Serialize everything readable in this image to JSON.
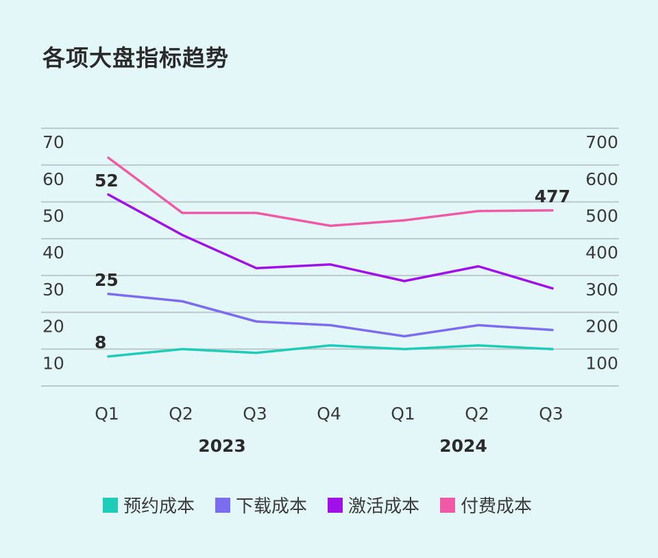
{
  "chart_data": {
    "type": "line",
    "title": "各项大盘指标趋势",
    "categories": [
      "Q1",
      "Q2",
      "Q3",
      "Q4",
      "Q1",
      "Q2",
      "Q3"
    ],
    "year_groups": [
      {
        "label": "2023",
        "start": 0,
        "end": 3
      },
      {
        "label": "2024",
        "start": 4,
        "end": 6
      }
    ],
    "y_left": {
      "min": 0,
      "max": 70,
      "ticks": [
        10,
        20,
        30,
        40,
        50,
        60,
        70
      ]
    },
    "y_right": {
      "min": 0,
      "max": 700,
      "ticks": [
        100,
        200,
        300,
        400,
        500,
        600,
        700
      ]
    },
    "grid": true,
    "legend_position": "bottom",
    "series": [
      {
        "name": "预约成本",
        "color": "#1fcbb9",
        "axis": "left",
        "values": [
          8,
          10,
          9,
          11,
          10,
          11,
          10
        ],
        "labels": [
          {
            "index": 0,
            "text": "8"
          }
        ]
      },
      {
        "name": "下载成本",
        "color": "#7b6cf0",
        "axis": "left",
        "values": [
          25,
          23,
          17.5,
          16.5,
          13.5,
          16.5,
          15.2
        ],
        "labels": [
          {
            "index": 0,
            "text": "25"
          }
        ]
      },
      {
        "name": "激活成本",
        "color": "#a010e8",
        "axis": "left",
        "values": [
          52,
          41,
          32,
          33,
          28.5,
          32.5,
          26.5
        ],
        "labels": [
          {
            "index": 0,
            "text": "52"
          }
        ]
      },
      {
        "name": "付费成本",
        "color": "#ef5aa6",
        "axis": "right",
        "values": [
          620,
          470,
          470,
          435,
          450,
          475,
          477
        ],
        "labels": [
          {
            "index": 6,
            "text": "477"
          }
        ]
      }
    ]
  }
}
